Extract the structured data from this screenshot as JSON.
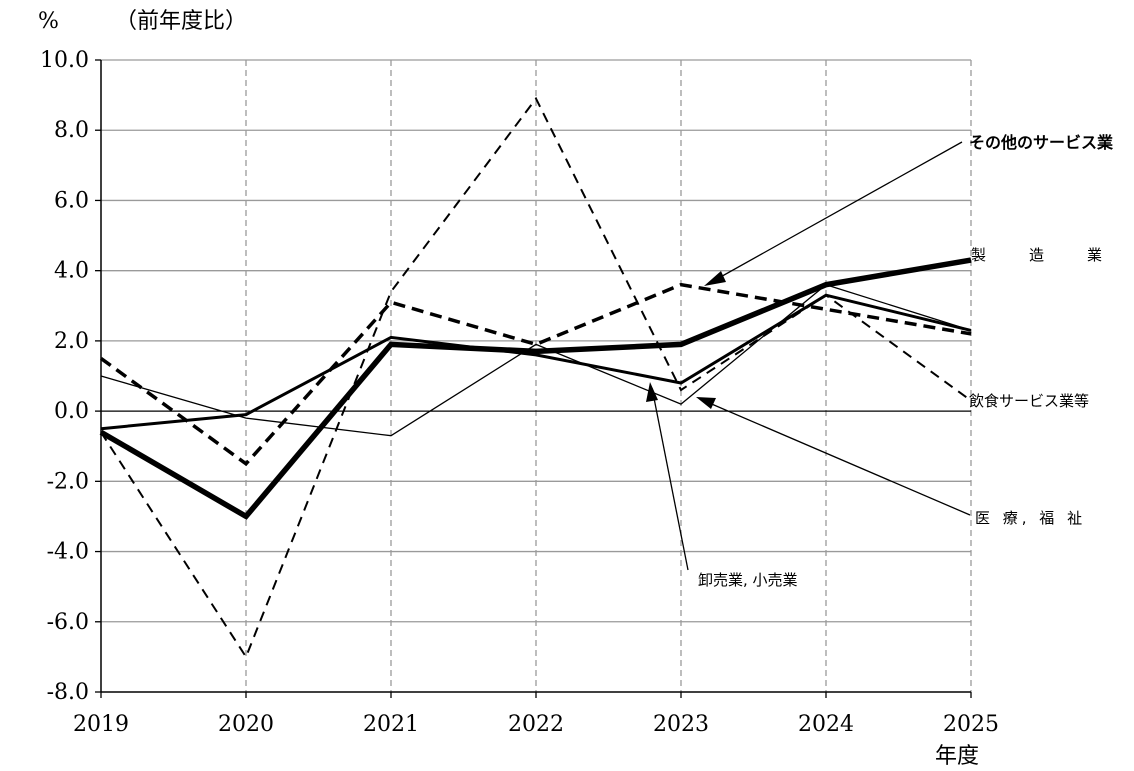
{
  "chart_data": {
    "type": "line",
    "y_unit_label": "%",
    "y_title": "（前年度比）",
    "x_unit_label": "年度",
    "x": [
      "2019",
      "2020",
      "2021",
      "2022",
      "2023",
      "2024",
      "2025"
    ],
    "ylim": [
      -8.0,
      10.0
    ],
    "yticks": [
      "10.0",
      "8.0",
      "6.0",
      "4.0",
      "2.0",
      "0.0",
      "-2.0",
      "-4.0",
      "-6.0",
      "-8.0"
    ],
    "grid": true,
    "series": [
      {
        "name": "製　造　業",
        "style": "thick-solid",
        "values": [
          -0.6,
          -3.0,
          1.9,
          1.7,
          1.9,
          3.6,
          4.3
        ]
      },
      {
        "name": "その他のサービス業",
        "style": "thick-dashed",
        "values": [
          1.5,
          -1.5,
          3.1,
          1.9,
          3.6,
          2.9,
          2.2
        ]
      },
      {
        "name": "飲食サービス業等",
        "style": "thin-dashed",
        "values": [
          -0.6,
          -7.0,
          3.4,
          8.9,
          0.6,
          3.3,
          0.3
        ]
      },
      {
        "name": "医 療, 福 祉",
        "style": "thin-solid",
        "values": [
          1.0,
          -0.2,
          -0.7,
          1.9,
          0.2,
          3.6,
          2.3
        ]
      },
      {
        "name": "卸売業, 小売業",
        "style": "medium-solid",
        "values": [
          -0.5,
          -0.1,
          2.1,
          1.6,
          0.8,
          3.3,
          2.3
        ]
      }
    ]
  }
}
